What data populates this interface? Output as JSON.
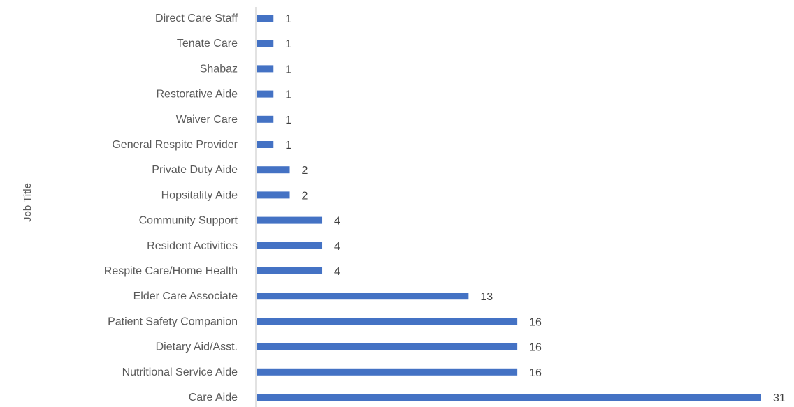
{
  "chart_data": {
    "type": "bar",
    "orientation": "horizontal",
    "title": "",
    "xlabel": "",
    "ylabel": "Job Title",
    "categories": [
      "Direct Care Staff",
      "Tenate Care",
      "Shabaz",
      "Restorative Aide",
      "Waiver Care",
      "General Respite Provider",
      "Private Duty Aide",
      "Hopsitality Aide",
      "Community Support",
      "Resident Activities",
      "Respite Care/Home Health",
      "Elder Care Associate",
      "Patient Safety Companion",
      "Dietary Aid/Asst.",
      "Nutritional Service Aide",
      "Care Aide"
    ],
    "values": [
      1,
      1,
      1,
      1,
      1,
      1,
      2,
      2,
      4,
      4,
      4,
      13,
      16,
      16,
      16,
      31
    ],
    "data_labels": true,
    "xlim": [
      0,
      31
    ],
    "grid": false,
    "legend": "none",
    "bar_color": "#4472C4",
    "axis_color": "#D9D9D9"
  }
}
